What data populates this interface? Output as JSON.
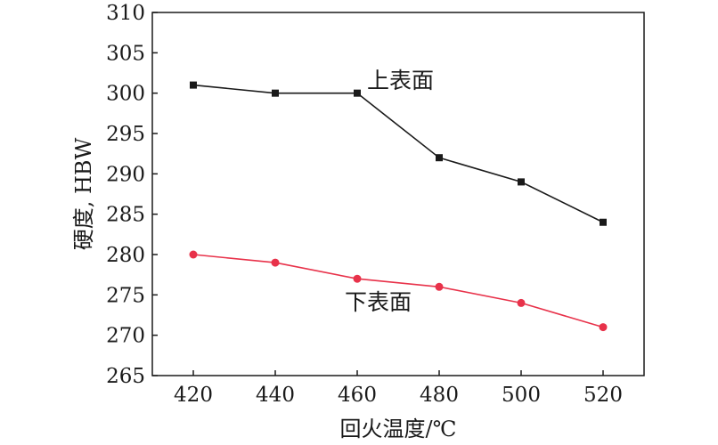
{
  "chart_data": {
    "type": "line",
    "title": "",
    "xlabel": "回火温度/℃",
    "ylabel": "硬度, HBW",
    "x": [
      420,
      440,
      460,
      480,
      500,
      520
    ],
    "xticks": [
      "420",
      "440",
      "460",
      "480",
      "500",
      "520"
    ],
    "yticks": [
      "265",
      "270",
      "275",
      "280",
      "285",
      "290",
      "295",
      "300",
      "305",
      "310"
    ],
    "xlim": [
      410,
      530
    ],
    "ylim": [
      265,
      310
    ],
    "grid": false,
    "legend": "none (series labelled inline)",
    "series": [
      {
        "name": "上表面",
        "values": [
          301,
          300,
          300,
          292,
          289,
          284
        ],
        "color": "#1a1a1a",
        "marker": "square"
      },
      {
        "name": "下表面",
        "values": [
          280,
          279,
          277,
          276,
          274,
          271
        ],
        "color": "#e8324a",
        "marker": "circle"
      }
    ]
  }
}
